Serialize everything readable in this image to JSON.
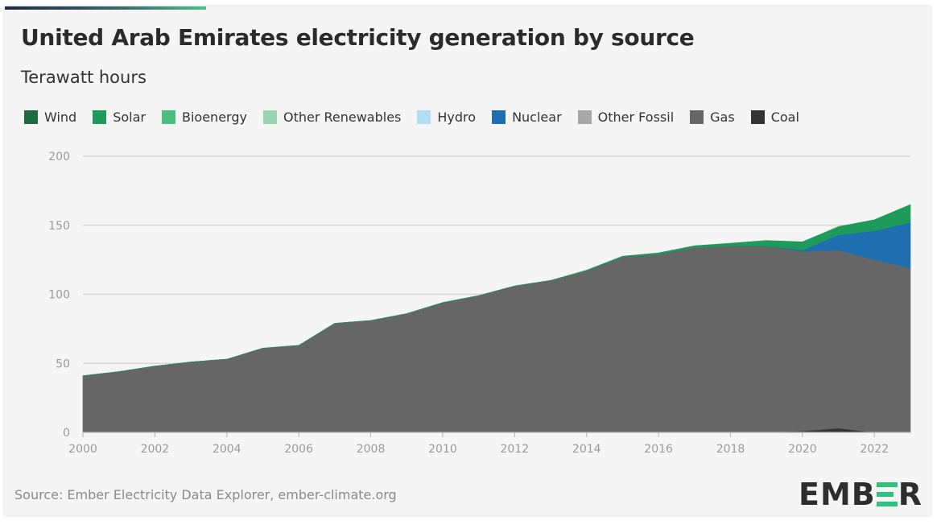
{
  "title": "United Arab Emirates electricity generation by source",
  "subtitle": "Terawatt hours",
  "legend": [
    {
      "label": "Wind",
      "color": "#1d6b3f"
    },
    {
      "label": "Solar",
      "color": "#1e9a5a"
    },
    {
      "label": "Bioenergy",
      "color": "#4cbf80"
    },
    {
      "label": "Other Renewables",
      "color": "#98d4b2"
    },
    {
      "label": "Hydro",
      "color": "#b3dcf5"
    },
    {
      "label": "Nuclear",
      "color": "#1f6fb0"
    },
    {
      "label": "Other Fossil",
      "color": "#a8a8a8"
    },
    {
      "label": "Gas",
      "color": "#666666"
    },
    {
      "label": "Coal",
      "color": "#333333"
    }
  ],
  "source": "Source: Ember Electricity Data Explorer, ember-climate.org",
  "logo": {
    "left": "EMB",
    "mid_icon": "ember-e-icon",
    "right": "R"
  },
  "chart_data": {
    "type": "area",
    "stacked": true,
    "x": [
      2000,
      2001,
      2002,
      2003,
      2004,
      2005,
      2006,
      2007,
      2008,
      2009,
      2010,
      2011,
      2012,
      2013,
      2014,
      2015,
      2016,
      2017,
      2018,
      2019,
      2020,
      2021,
      2022,
      2023
    ],
    "ylim": [
      0,
      200
    ],
    "yticks": [
      0,
      50,
      100,
      150,
      200
    ],
    "xticks": [
      2000,
      2002,
      2004,
      2006,
      2008,
      2010,
      2012,
      2014,
      2016,
      2018,
      2020,
      2022
    ],
    "grid": "horizontal",
    "legend_position": "top",
    "series": [
      {
        "name": "Coal",
        "color": "#333333",
        "values": [
          0,
          0,
          0,
          0,
          0,
          0,
          0,
          0,
          0,
          0,
          0,
          0,
          0,
          0,
          0,
          0,
          0,
          0,
          0,
          0,
          1,
          3,
          0,
          0
        ]
      },
      {
        "name": "Gas",
        "color": "#666666",
        "values": [
          41,
          44,
          48,
          51,
          53,
          61,
          63,
          79,
          81,
          86,
          94,
          99,
          106,
          110,
          117,
          127,
          129,
          134,
          135,
          135,
          130,
          129,
          125,
          119
        ]
      },
      {
        "name": "Other Fossil",
        "color": "#a8a8a8",
        "values": [
          0,
          0,
          0,
          0,
          0,
          0,
          0,
          0,
          0,
          0,
          0,
          0,
          0,
          0,
          0,
          0,
          0,
          0,
          0,
          0,
          0,
          0,
          0,
          0
        ]
      },
      {
        "name": "Nuclear",
        "color": "#1f6fb0",
        "values": [
          0,
          0,
          0,
          0,
          0,
          0,
          0,
          0,
          0,
          0,
          0,
          0,
          0,
          0,
          0,
          0,
          0,
          0,
          0,
          0,
          1,
          11,
          21,
          33
        ]
      },
      {
        "name": "Hydro",
        "color": "#b3dcf5",
        "values": [
          0,
          0,
          0,
          0,
          0,
          0,
          0,
          0,
          0,
          0,
          0,
          0,
          0,
          0,
          0,
          0,
          0,
          0,
          0,
          0,
          0,
          0,
          0,
          0
        ]
      },
      {
        "name": "Other Renewables",
        "color": "#98d4b2",
        "values": [
          0,
          0,
          0,
          0,
          0,
          0,
          0,
          0,
          0,
          0,
          0,
          0,
          0,
          0,
          0,
          0,
          0,
          0,
          0,
          0,
          0,
          0,
          0,
          0
        ]
      },
      {
        "name": "Bioenergy",
        "color": "#4cbf80",
        "values": [
          0,
          0,
          0,
          0,
          0,
          0,
          0,
          0,
          0,
          0,
          0,
          0,
          0,
          0,
          0,
          0,
          0,
          0,
          0,
          0,
          0,
          0,
          0,
          0
        ]
      },
      {
        "name": "Solar",
        "color": "#1e9a5a",
        "values": [
          0,
          0,
          0,
          0,
          0,
          0,
          0,
          0,
          0,
          0,
          0,
          0,
          0,
          0,
          0.5,
          0.6,
          1,
          1.2,
          2,
          4,
          6,
          6,
          8,
          13
        ]
      },
      {
        "name": "Wind",
        "color": "#1d6b3f",
        "values": [
          0,
          0,
          0,
          0,
          0,
          0,
          0,
          0,
          0,
          0,
          0,
          0,
          0,
          0,
          0,
          0,
          0,
          0,
          0,
          0,
          0,
          0,
          0,
          0
        ]
      }
    ]
  }
}
